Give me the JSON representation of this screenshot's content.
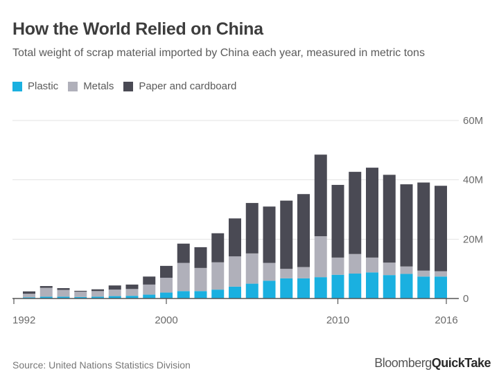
{
  "chart_data": {
    "type": "bar",
    "stacked": true,
    "title": "How the World Relied on China",
    "subtitle": "Total weight of scrap material imported by China each year, measured in metric tons",
    "categories": [
      1992,
      1993,
      1994,
      1995,
      1996,
      1997,
      1998,
      1999,
      2000,
      2001,
      2002,
      2003,
      2004,
      2005,
      2006,
      2007,
      2008,
      2009,
      2010,
      2011,
      2012,
      2013,
      2014,
      2015,
      2016
    ],
    "series": [
      {
        "name": "Plastic",
        "color": "#1ab0e0",
        "values": [
          0.4,
          0.6,
          0.6,
          0.5,
          0.6,
          0.8,
          0.9,
          1.3,
          2.0,
          2.5,
          2.5,
          3.0,
          4.0,
          5.0,
          6.0,
          6.8,
          6.8,
          7.2,
          8.0,
          8.4,
          8.8,
          7.9,
          8.3,
          7.4,
          7.4
        ]
      },
      {
        "name": "Metals",
        "color": "#b0b0ba",
        "values": [
          1.2,
          3.0,
          2.3,
          1.8,
          1.9,
          2.2,
          2.3,
          3.4,
          5.0,
          9.5,
          7.8,
          9.2,
          10.2,
          10.2,
          6.0,
          3.2,
          3.8,
          13.8,
          5.8,
          6.6,
          5.0,
          4.2,
          2.5,
          2.0,
          1.8
        ]
      },
      {
        "name": "Paper and cardboard",
        "color": "#4a4a54",
        "values": [
          0.8,
          0.6,
          0.6,
          0.3,
          0.6,
          1.4,
          1.5,
          2.7,
          4.0,
          6.5,
          7.0,
          9.8,
          12.8,
          17.0,
          19.0,
          23.0,
          24.6,
          27.5,
          24.5,
          27.7,
          30.3,
          29.6,
          27.7,
          29.7,
          28.8
        ]
      }
    ],
    "ylim": [
      0,
      60
    ],
    "yticks": [
      "0",
      "20M",
      "40M",
      "60M"
    ],
    "xticks": [
      "1992",
      "2000",
      "2010",
      "2016"
    ],
    "xlabel": "",
    "ylabel": "",
    "grid": true,
    "legend_position": "top-left"
  },
  "footer": {
    "source": "Source: United Nations Statistics Division",
    "brand_part1": "Bloomberg",
    "brand_part2": "QuickTake"
  }
}
